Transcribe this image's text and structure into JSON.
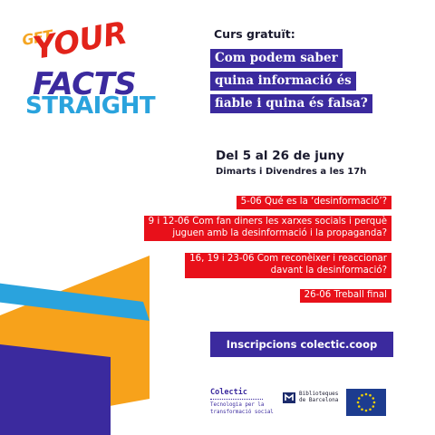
{
  "logo": {
    "line1": "GET",
    "line2": "YOUR",
    "line3": "FACTS",
    "line4": "STRAIGHT"
  },
  "header": {
    "label": "Curs gratuït:",
    "title_lines": [
      "Com podem saber",
      "quina informació és",
      "fiable i quina és falsa?"
    ]
  },
  "schedule": {
    "dates": "Del 5 al 26 de juny",
    "days": "Dimarts i Divendres a les  17h"
  },
  "sessions": [
    [
      "5-06 Qué es la ‘desinformació’?"
    ],
    [
      "9 i 12-06 Com fan diners les xarxes socials i perquè",
      "juguen amb la desinformació i la propaganda?"
    ],
    [
      "16, 19 i 23-06 Com reconèixer i reaccionar",
      "davant la desinformació?"
    ],
    [
      "26-06 Treball final"
    ]
  ],
  "cta": {
    "label": "Inscripcions colectic.coop"
  },
  "footer": {
    "colectic_name": "Colectic",
    "colectic_tagline": "Tecnologia per la transformació social",
    "bib_line1": "Biblioteques",
    "bib_line2": "de Barcelona",
    "eu_flag_icon": "eu-flag-icon"
  },
  "colors": {
    "purple": "#3b2a9e",
    "red": "#e8101a",
    "orange": "#f7a21b",
    "blue": "#2aa3dd"
  }
}
